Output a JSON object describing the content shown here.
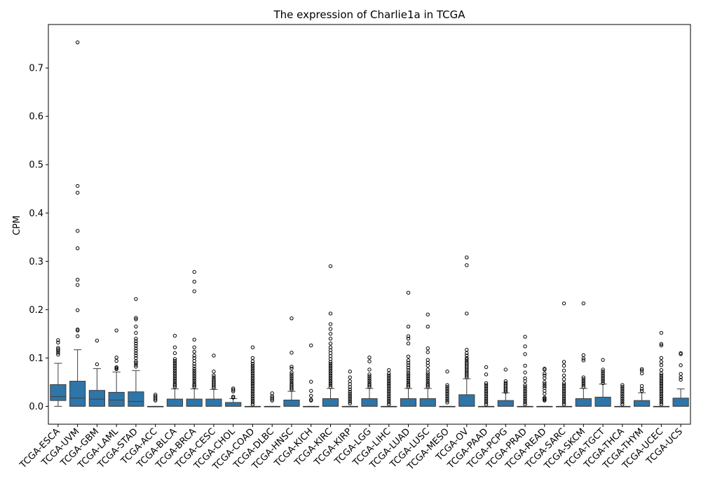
{
  "chart_data": {
    "type": "box",
    "title": "The expression of Charlie1a in TCGA",
    "xlabel": "",
    "ylabel": "CPM",
    "ylim": [
      -0.037,
      0.79
    ],
    "yticks": [
      0.0,
      0.1,
      0.2,
      0.3,
      0.4,
      0.5,
      0.6,
      0.7
    ],
    "ytick_labels": [
      "0.0",
      "0.1",
      "0.2",
      "0.3",
      "0.4",
      "0.5",
      "0.6",
      "0.7"
    ],
    "grid": false,
    "box_color": "#2e75a8",
    "categories": [
      "TCGA-ESCA",
      "TCGA-UVM",
      "TCGA-GBM",
      "TCGA-LAML",
      "TCGA-STAD",
      "TCGA-ACC",
      "TCGA-BLCA",
      "TCGA-BRCA",
      "TCGA-CESC",
      "TCGA-CHOL",
      "TCGA-COAD",
      "TCGA-DLBC",
      "TCGA-HNSC",
      "TCGA-KICH",
      "TCGA-KIRC",
      "TCGA-KIRP",
      "TCGA-LGG",
      "TCGA-LIHC",
      "TCGA-LUAD",
      "TCGA-LUSC",
      "TCGA-MESO",
      "TCGA-OV",
      "TCGA-PAAD",
      "TCGA-PCPG",
      "TCGA-PRAD",
      "TCGA-READ",
      "TCGA-SARC",
      "TCGA-SKCM",
      "TCGA-TGCT",
      "TCGA-THCA",
      "TCGA-THYM",
      "TCGA-UCEC",
      "TCGA-UCS"
    ],
    "boxes": [
      {
        "whislo": 0.0,
        "q1": 0.012,
        "med": 0.02,
        "q3": 0.045,
        "whishi": 0.089,
        "fliers": [
          0.107,
          0.111,
          0.115,
          0.118,
          0.121,
          0.132,
          0.137
        ]
      },
      {
        "whislo": 0.0,
        "q1": 0.0,
        "med": 0.017,
        "q3": 0.052,
        "whishi": 0.117,
        "fliers": [
          0.145,
          0.157,
          0.159,
          0.199,
          0.251,
          0.262,
          0.327,
          0.363,
          0.442,
          0.456,
          0.753
        ]
      },
      {
        "whislo": 0.0,
        "q1": 0.0,
        "med": 0.015,
        "q3": 0.033,
        "whishi": 0.078,
        "fliers": [
          0.087,
          0.136
        ]
      },
      {
        "whislo": 0.0,
        "q1": 0.0,
        "med": 0.013,
        "q3": 0.029,
        "whishi": 0.071,
        "fliers": [
          0.077,
          0.079,
          0.081,
          0.094,
          0.101,
          0.157
        ]
      },
      {
        "whislo": 0.0,
        "q1": 0.0,
        "med": 0.01,
        "q3": 0.03,
        "whishi": 0.074,
        "fliers": [
          0.082,
          0.086,
          0.09,
          0.093,
          0.1,
          0.105,
          0.11,
          0.115,
          0.12,
          0.125,
          0.13,
          0.135,
          0.14,
          0.152,
          0.165,
          0.18,
          0.183,
          0.222
        ]
      },
      {
        "whislo": 0.0,
        "q1": 0.0,
        "med": 0.0,
        "q3": 0.0,
        "whishi": 0.0,
        "fliers": [
          0.012,
          0.015,
          0.018,
          0.021,
          0.024
        ]
      },
      {
        "whislo": 0.0,
        "q1": 0.0,
        "med": 0.0,
        "q3": 0.015,
        "whishi": 0.036,
        "fliers": [
          0.04,
          0.043,
          0.046,
          0.05,
          0.054,
          0.058,
          0.062,
          0.066,
          0.07,
          0.074,
          0.078,
          0.082,
          0.086,
          0.09,
          0.094,
          0.098,
          0.11,
          0.122,
          0.146
        ]
      },
      {
        "whislo": 0.0,
        "q1": 0.0,
        "med": 0.0,
        "q3": 0.015,
        "whishi": 0.036,
        "fliers": [
          0.04,
          0.043,
          0.046,
          0.05,
          0.054,
          0.058,
          0.062,
          0.066,
          0.07,
          0.074,
          0.078,
          0.083,
          0.088,
          0.094,
          0.1,
          0.105,
          0.113,
          0.122,
          0.138,
          0.238,
          0.258,
          0.278
        ]
      },
      {
        "whislo": 0.0,
        "q1": 0.0,
        "med": 0.0,
        "q3": 0.015,
        "whishi": 0.035,
        "fliers": [
          0.038,
          0.041,
          0.044,
          0.047,
          0.05,
          0.053,
          0.056,
          0.06,
          0.064,
          0.072,
          0.105
        ]
      },
      {
        "whislo": 0.0,
        "q1": 0.0,
        "med": 0.0,
        "q3": 0.008,
        "whishi": 0.016,
        "fliers": [
          0.018,
          0.02,
          0.031,
          0.034,
          0.037
        ]
      },
      {
        "whislo": 0.0,
        "q1": 0.0,
        "med": 0.0,
        "q3": 0.0,
        "whishi": 0.0,
        "fliers": [
          0.004,
          0.008,
          0.012,
          0.016,
          0.02,
          0.024,
          0.028,
          0.032,
          0.036,
          0.04,
          0.044,
          0.048,
          0.052,
          0.056,
          0.06,
          0.064,
          0.068,
          0.072,
          0.076,
          0.08,
          0.084,
          0.088,
          0.093,
          0.1,
          0.122
        ]
      },
      {
        "whislo": 0.0,
        "q1": 0.0,
        "med": 0.0,
        "q3": 0.0,
        "whishi": 0.0,
        "fliers": [
          0.012,
          0.015,
          0.018,
          0.021,
          0.027
        ]
      },
      {
        "whislo": 0.0,
        "q1": 0.0,
        "med": 0.0,
        "q3": 0.013,
        "whishi": 0.031,
        "fliers": [
          0.034,
          0.037,
          0.04,
          0.043,
          0.046,
          0.05,
          0.054,
          0.058,
          0.062,
          0.066,
          0.07,
          0.078,
          0.082,
          0.111,
          0.182
        ]
      },
      {
        "whislo": 0.0,
        "q1": 0.0,
        "med": 0.0,
        "q3": 0.0,
        "whishi": 0.0,
        "fliers": [
          0.012,
          0.014,
          0.022,
          0.032,
          0.051,
          0.126
        ]
      },
      {
        "whislo": 0.0,
        "q1": 0.0,
        "med": 0.0,
        "q3": 0.016,
        "whishi": 0.037,
        "fliers": [
          0.04,
          0.044,
          0.048,
          0.052,
          0.056,
          0.06,
          0.064,
          0.068,
          0.072,
          0.076,
          0.08,
          0.084,
          0.088,
          0.092,
          0.098,
          0.104,
          0.11,
          0.116,
          0.122,
          0.13,
          0.14,
          0.15,
          0.16,
          0.17,
          0.192,
          0.29
        ]
      },
      {
        "whislo": 0.0,
        "q1": 0.0,
        "med": 0.0,
        "q3": 0.0,
        "whishi": 0.0,
        "fliers": [
          0.006,
          0.01,
          0.014,
          0.018,
          0.022,
          0.026,
          0.03,
          0.035,
          0.04,
          0.046,
          0.052,
          0.06,
          0.072
        ]
      },
      {
        "whislo": 0.0,
        "q1": 0.0,
        "med": 0.0,
        "q3": 0.016,
        "whishi": 0.037,
        "fliers": [
          0.04,
          0.043,
          0.046,
          0.05,
          0.054,
          0.058,
          0.062,
          0.066,
          0.076,
          0.093,
          0.101
        ]
      },
      {
        "whislo": 0.0,
        "q1": 0.0,
        "med": 0.0,
        "q3": 0.0,
        "whishi": 0.0,
        "fliers": [
          0.004,
          0.008,
          0.012,
          0.016,
          0.02,
          0.024,
          0.028,
          0.032,
          0.036,
          0.04,
          0.044,
          0.048,
          0.052,
          0.056,
          0.06,
          0.064,
          0.068,
          0.075
        ]
      },
      {
        "whislo": 0.0,
        "q1": 0.0,
        "med": 0.0,
        "q3": 0.016,
        "whishi": 0.037,
        "fliers": [
          0.04,
          0.043,
          0.046,
          0.05,
          0.054,
          0.058,
          0.062,
          0.066,
          0.07,
          0.075,
          0.08,
          0.085,
          0.09,
          0.095,
          0.103,
          0.13,
          0.14,
          0.145,
          0.165,
          0.235
        ]
      },
      {
        "whislo": 0.0,
        "q1": 0.0,
        "med": 0.0,
        "q3": 0.016,
        "whishi": 0.037,
        "fliers": [
          0.04,
          0.043,
          0.046,
          0.05,
          0.054,
          0.058,
          0.062,
          0.066,
          0.07,
          0.076,
          0.084,
          0.09,
          0.096,
          0.112,
          0.12,
          0.165,
          0.19
        ]
      },
      {
        "whislo": 0.0,
        "q1": 0.0,
        "med": 0.0,
        "q3": 0.0,
        "whishi": 0.0,
        "fliers": [
          0.008,
          0.012,
          0.016,
          0.02,
          0.024,
          0.028,
          0.032,
          0.036,
          0.04,
          0.044,
          0.072
        ]
      },
      {
        "whislo": 0.0,
        "q1": 0.0,
        "med": 0.0,
        "q3": 0.024,
        "whishi": 0.057,
        "fliers": [
          0.06,
          0.063,
          0.066,
          0.069,
          0.072,
          0.075,
          0.078,
          0.081,
          0.084,
          0.087,
          0.09,
          0.093,
          0.097,
          0.1,
          0.105,
          0.11,
          0.117,
          0.192,
          0.292,
          0.308
        ]
      },
      {
        "whislo": 0.0,
        "q1": 0.0,
        "med": 0.0,
        "q3": 0.0,
        "whishi": 0.0,
        "fliers": [
          0.004,
          0.008,
          0.012,
          0.016,
          0.02,
          0.024,
          0.028,
          0.032,
          0.036,
          0.04,
          0.044,
          0.048,
          0.066,
          0.081
        ]
      },
      {
        "whislo": 0.0,
        "q1": 0.0,
        "med": 0.0,
        "q3": 0.012,
        "whishi": 0.028,
        "fliers": [
          0.03,
          0.033,
          0.036,
          0.039,
          0.042,
          0.045,
          0.048,
          0.052,
          0.076
        ]
      },
      {
        "whislo": 0.0,
        "q1": 0.0,
        "med": 0.0,
        "q3": 0.0,
        "whishi": 0.0,
        "fliers": [
          0.004,
          0.008,
          0.012,
          0.016,
          0.02,
          0.024,
          0.028,
          0.032,
          0.036,
          0.04,
          0.044,
          0.052,
          0.058,
          0.07,
          0.084,
          0.108,
          0.124,
          0.144
        ]
      },
      {
        "whislo": 0.0,
        "q1": 0.0,
        "med": 0.0,
        "q3": 0.0,
        "whishi": 0.0,
        "fliers": [
          0.012,
          0.014,
          0.016,
          0.018,
          0.026,
          0.032,
          0.038,
          0.042,
          0.046,
          0.05,
          0.058,
          0.064,
          0.068,
          0.076,
          0.078
        ]
      },
      {
        "whislo": 0.0,
        "q1": 0.0,
        "med": 0.0,
        "q3": 0.0,
        "whishi": 0.0,
        "fliers": [
          0.004,
          0.008,
          0.012,
          0.016,
          0.02,
          0.024,
          0.028,
          0.032,
          0.036,
          0.04,
          0.044,
          0.048,
          0.056,
          0.064,
          0.074,
          0.084,
          0.092,
          0.213
        ]
      },
      {
        "whislo": 0.0,
        "q1": 0.0,
        "med": 0.0,
        "q3": 0.016,
        "whishi": 0.037,
        "fliers": [
          0.04,
          0.044,
          0.048,
          0.052,
          0.056,
          0.06,
          0.095,
          0.099,
          0.106,
          0.213
        ]
      },
      {
        "whislo": 0.0,
        "q1": 0.0,
        "med": 0.0,
        "q3": 0.019,
        "whishi": 0.046,
        "fliers": [
          0.048,
          0.052,
          0.056,
          0.06,
          0.064,
          0.068,
          0.072,
          0.076,
          0.096
        ]
      },
      {
        "whislo": 0.0,
        "q1": 0.0,
        "med": 0.0,
        "q3": 0.0,
        "whishi": 0.0,
        "fliers": [
          0.004,
          0.008,
          0.012,
          0.016,
          0.02,
          0.024,
          0.028,
          0.032,
          0.036,
          0.04,
          0.044
        ]
      },
      {
        "whislo": 0.0,
        "q1": 0.0,
        "med": 0.0,
        "q3": 0.012,
        "whishi": 0.028,
        "fliers": [
          0.032,
          0.036,
          0.042,
          0.068,
          0.074,
          0.077
        ]
      },
      {
        "whislo": 0.0,
        "q1": 0.0,
        "med": 0.0,
        "q3": 0.0,
        "whishi": 0.0,
        "fliers": [
          0.004,
          0.008,
          0.012,
          0.016,
          0.02,
          0.024,
          0.028,
          0.032,
          0.036,
          0.04,
          0.044,
          0.048,
          0.052,
          0.056,
          0.06,
          0.064,
          0.068,
          0.075,
          0.085,
          0.092,
          0.1,
          0.126,
          0.129,
          0.152
        ]
      },
      {
        "whislo": 0.0,
        "q1": 0.0,
        "med": 0.0,
        "q3": 0.017,
        "whishi": 0.036,
        "fliers": [
          0.055,
          0.06,
          0.067,
          0.085,
          0.108,
          0.11
        ]
      }
    ]
  }
}
